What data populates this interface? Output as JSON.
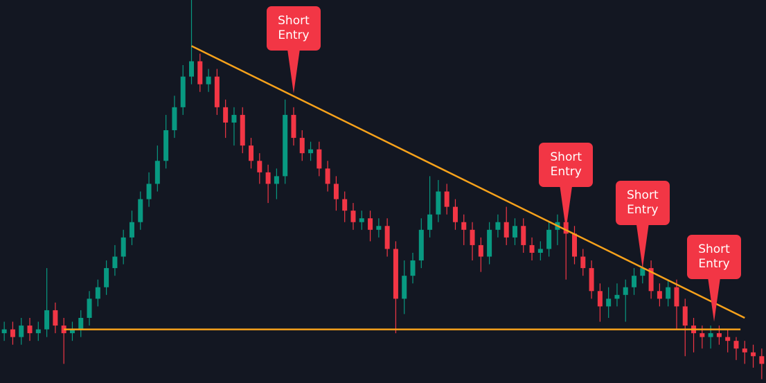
{
  "chart_data": {
    "type": "candlestick",
    "up_color": "#089981",
    "down_color": "#f23645",
    "background": "#131722",
    "line_color": "#f7a21b",
    "annotation_color": "#f23645",
    "ylim": [
      0,
      100
    ],
    "open": [
      13,
      14,
      12,
      15,
      13,
      14,
      19,
      15,
      13,
      14,
      17,
      22,
      25,
      30,
      33,
      38,
      42,
      48,
      52,
      58,
      66,
      72,
      80,
      84,
      78,
      80,
      72,
      68,
      70,
      62,
      58,
      55,
      52,
      54,
      70,
      64,
      60,
      61,
      56,
      52,
      48,
      45,
      42,
      43,
      40,
      41,
      35,
      22,
      28,
      32,
      40,
      44,
      50,
      46,
      42,
      40,
      36,
      33,
      40,
      42,
      38,
      41,
      36,
      34,
      35,
      40,
      42,
      39,
      33,
      30,
      24,
      20,
      22,
      23,
      25,
      28,
      30,
      24,
      22,
      25,
      20,
      15,
      13,
      12,
      13,
      12,
      11,
      9,
      8,
      7
    ],
    "close": [
      14,
      12,
      15,
      13,
      14,
      19,
      15,
      13,
      14,
      17,
      22,
      25,
      30,
      33,
      38,
      42,
      48,
      52,
      58,
      66,
      72,
      80,
      84,
      78,
      80,
      72,
      68,
      70,
      62,
      58,
      55,
      52,
      54,
      70,
      64,
      60,
      61,
      56,
      52,
      48,
      45,
      42,
      43,
      40,
      41,
      35,
      22,
      28,
      32,
      40,
      44,
      50,
      46,
      42,
      40,
      36,
      33,
      40,
      42,
      38,
      41,
      36,
      34,
      35,
      40,
      42,
      39,
      33,
      30,
      24,
      20,
      22,
      23,
      25,
      28,
      30,
      24,
      22,
      25,
      20,
      15,
      13,
      12,
      13,
      12,
      11,
      9,
      8,
      7,
      5
    ],
    "high": [
      16,
      16,
      17,
      17,
      16,
      30,
      21,
      17,
      16,
      19,
      24,
      27,
      32,
      36,
      40,
      45,
      50,
      55,
      62,
      70,
      75,
      83,
      100,
      86,
      82,
      82,
      74,
      72,
      72,
      64,
      60,
      57,
      56,
      74,
      72,
      66,
      63,
      63,
      58,
      54,
      50,
      47,
      45,
      45,
      43,
      43,
      37,
      32,
      34,
      43,
      54,
      53,
      52,
      48,
      44,
      42,
      38,
      42,
      44,
      46,
      43,
      43,
      38,
      37,
      42,
      44,
      44,
      41,
      35,
      32,
      26,
      25,
      26,
      27,
      30,
      32,
      32,
      26,
      27,
      27,
      22,
      17,
      15,
      15,
      15,
      14,
      12,
      11,
      10,
      9
    ],
    "low": [
      11,
      10,
      10,
      11,
      11,
      12,
      13,
      5,
      11,
      12,
      15,
      20,
      23,
      28,
      31,
      36,
      40,
      46,
      50,
      56,
      64,
      70,
      78,
      76,
      76,
      70,
      64,
      62,
      60,
      56,
      52,
      47,
      48,
      52,
      62,
      58,
      58,
      54,
      50,
      45,
      42,
      40,
      40,
      37,
      38,
      33,
      13,
      18,
      26,
      30,
      38,
      42,
      44,
      40,
      36,
      32,
      29,
      31,
      38,
      36,
      36,
      34,
      32,
      32,
      33,
      36,
      27,
      31,
      28,
      22,
      16,
      17,
      20,
      16,
      23,
      26,
      22,
      20,
      20,
      14,
      7,
      8,
      9,
      9,
      10,
      8,
      6,
      5,
      4,
      1
    ],
    "support": 14,
    "trendline": {
      "start": [
        22,
        88
      ],
      "end": [
        87,
        17
      ]
    },
    "annotations": [
      {
        "text": "Short Entry",
        "index": 34,
        "value": 75.6
      },
      {
        "text": "Short Entry",
        "index": 66,
        "value": 40
      },
      {
        "text": "Short Entry",
        "index": 75,
        "value": 30
      },
      {
        "text": "Short Entry",
        "index": 83.4,
        "value": 16
      }
    ]
  }
}
